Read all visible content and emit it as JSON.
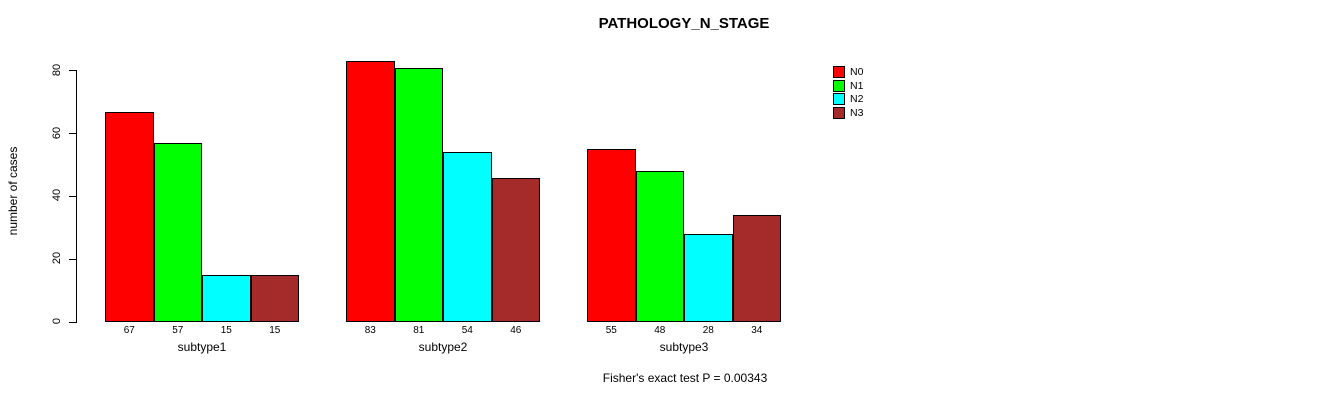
{
  "chart_data": {
    "type": "bar",
    "title": "PATHOLOGY_N_STAGE",
    "ylabel": "number of cases",
    "xlabel": "",
    "categories": [
      "subtype1",
      "subtype2",
      "subtype3"
    ],
    "series": [
      {
        "name": "N0",
        "color": "#ff0000",
        "values": [
          67,
          83,
          55
        ]
      },
      {
        "name": "N1",
        "color": "#00ff00",
        "values": [
          57,
          81,
          48
        ]
      },
      {
        "name": "N2",
        "color": "#00ffff",
        "values": [
          15,
          54,
          28
        ]
      },
      {
        "name": "N3",
        "color": "#a52a2a",
        "values": [
          15,
          46,
          34
        ]
      }
    ],
    "bar_value_labels": [
      [
        67,
        57,
        15,
        15
      ],
      [
        83,
        81,
        54,
        46
      ],
      [
        55,
        48,
        28,
        34
      ]
    ],
    "yticks": [
      0,
      20,
      40,
      60,
      80
    ],
    "ylim": [
      0,
      85
    ],
    "grid": false,
    "legend_position": "top-right",
    "annotation": "Fisher's exact test P = 0.00343",
    "colors": {
      "background": "#ffffff",
      "axis": "#000000",
      "text": "#000000"
    }
  }
}
